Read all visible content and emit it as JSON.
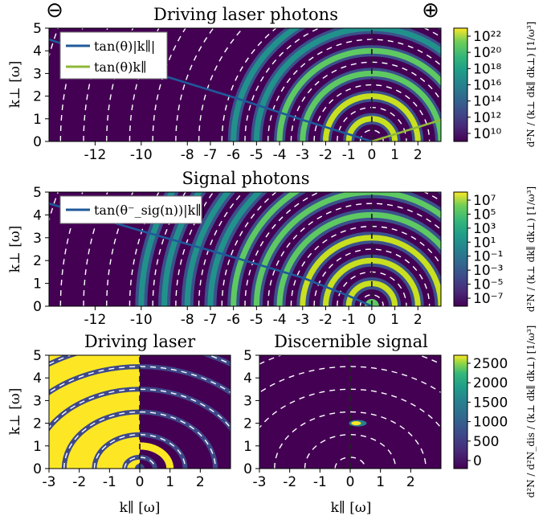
{
  "chart_data": [
    {
      "type": "heatmap",
      "title": "Driving laser photons",
      "ylabel": "k⊥ [ω]",
      "xlim": [
        -14,
        3
      ],
      "ylim": [
        0,
        5
      ],
      "xticks": [
        "-12",
        "-10",
        "-8",
        "-7",
        "-6",
        "-5",
        "-4",
        "-3",
        "-2",
        "-1",
        "0",
        "1",
        "2"
      ],
      "xtick_values": [
        -12,
        -10,
        -8,
        -7,
        -6,
        -5,
        -4,
        -3,
        -2,
        -1,
        0,
        1,
        2
      ],
      "yticks": [
        "0",
        "1",
        "2",
        "3",
        "4",
        "5"
      ],
      "legend": [
        "tan(θ)|k∥|",
        "tan(θ)k∥"
      ],
      "legend_colors": [
        "#1f5a9a",
        "#8fb83a"
      ],
      "colorbar": {
        "scale": "log",
        "ticks": [
          "10²²",
          "10²⁰",
          "10¹⁸",
          "10¹⁶",
          "10¹⁴",
          "10¹²",
          "10¹⁰"
        ],
        "label": "d²N / (k⊥ dk∥ dk⊥)  [1/ω³]"
      },
      "ring_radii_omega": [
        1,
        2,
        3,
        4,
        5,
        6
      ],
      "corner_symbols": [
        "⊖",
        "⊕"
      ],
      "line_series": [
        {
          "name": "tan(θ)|k∥|",
          "x": [
            -14,
            -10,
            -6,
            -3,
            0
          ],
          "y": [
            4.5,
            3.2,
            1.95,
            0.95,
            0
          ]
        },
        {
          "name": "tan(θ)k∥",
          "x": [
            0,
            3
          ],
          "y": [
            0,
            0.95
          ]
        }
      ]
    },
    {
      "type": "heatmap",
      "title": "Signal photons",
      "ylabel": "k⊥ [ω]",
      "xlim": [
        -14,
        3
      ],
      "ylim": [
        0,
        5
      ],
      "xticks": [
        "-12",
        "-10",
        "-8",
        "-7",
        "-6",
        "-5",
        "-4",
        "-3",
        "-2",
        "-1",
        "0",
        "1",
        "2"
      ],
      "xtick_values": [
        -12,
        -10,
        -8,
        -7,
        -6,
        -5,
        -4,
        -3,
        -2,
        -1,
        0,
        1,
        2
      ],
      "yticks": [
        "0",
        "1",
        "2",
        "3",
        "4",
        "5"
      ],
      "legend": [
        "tan(θ⁻_sig(n))|k∥|"
      ],
      "legend_colors": [
        "#1f5a9a"
      ],
      "colorbar": {
        "scale": "log",
        "ticks": [
          "10⁷",
          "10⁵",
          "10³",
          "10¹",
          "10⁻¹",
          "10⁻³",
          "10⁻⁵",
          "10⁻⁷"
        ],
        "label": "d²N / (k⊥ dk∥ dk⊥)  [1/ω³]"
      },
      "ring_radii_omega": [
        1,
        2,
        3,
        4,
        5,
        6,
        7,
        8,
        9,
        10
      ],
      "line_series": [
        {
          "name": "tan(θ⁻_sig(n))|k∥|",
          "x": [
            -14,
            -10,
            -6,
            -3,
            -1,
            0
          ],
          "y": [
            4.5,
            3.3,
            2.15,
            1.25,
            0.45,
            0
          ]
        }
      ]
    },
    {
      "type": "heatmap",
      "title": "Driving laser",
      "xlabel": "k∥ [ω]",
      "ylabel": "k⊥ [ω]",
      "xlim": [
        -3,
        3
      ],
      "ylim": [
        0,
        5
      ],
      "xticks": [
        "-3",
        "-2",
        "-1",
        "0",
        "1",
        "2"
      ],
      "xtick_values": [
        -3,
        -2,
        -1,
        0,
        1,
        2
      ],
      "yticks": [
        "0",
        "1",
        "2",
        "3",
        "4",
        "5"
      ]
    },
    {
      "type": "heatmap",
      "title": "Discernible signal",
      "xlabel": "k∥ [ω]",
      "xlim": [
        -3,
        3
      ],
      "ylim": [
        0,
        5
      ],
      "xticks": [
        "-3",
        "-2",
        "-1",
        "0",
        "1",
        "2"
      ],
      "xtick_values": [
        -3,
        -2,
        -1,
        0,
        1,
        2
      ],
      "yticks": [
        "0",
        "1",
        "2",
        "3",
        "4",
        "5"
      ],
      "hotspot": {
        "x": 0.25,
        "y": 2.0
      },
      "colorbar": {
        "scale": "linear",
        "ticks": [
          "2500",
          "2000",
          "1500",
          "1000",
          "500",
          "0"
        ],
        "label": "d²N / d²N_dis / (k⊥ dk∥ dk⊥)  [1/ω³]"
      }
    }
  ]
}
